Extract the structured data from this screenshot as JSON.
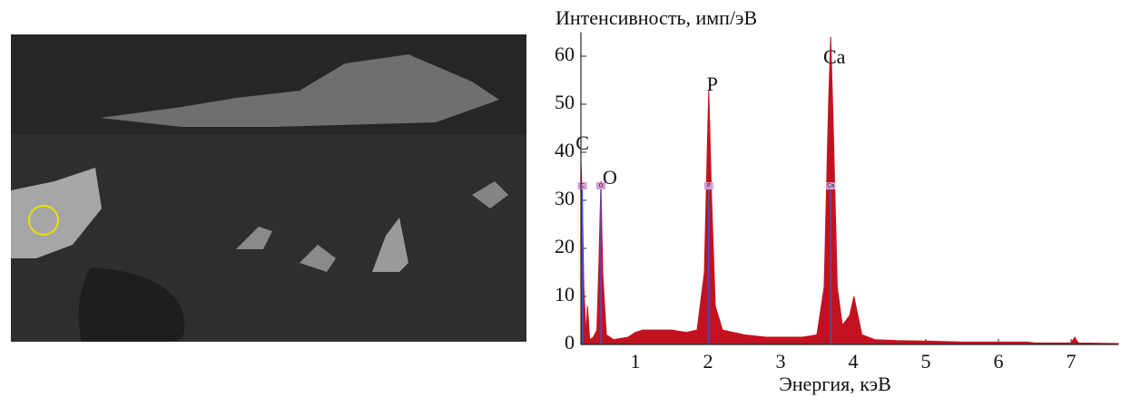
{
  "chart_data": {
    "type": "area",
    "ylabel": "Интенсивность, имп/эВ",
    "xlabel": "Энергия, кэВ",
    "xlim": [
      0.25,
      7.65
    ],
    "xticks": [
      1,
      2,
      3,
      4,
      5,
      6,
      7
    ],
    "ylim": [
      0,
      65
    ],
    "yticks": [
      0,
      10,
      20,
      30,
      40,
      50,
      60
    ],
    "series": [
      {
        "color": "#c3121f",
        "x": [
          0.25,
          0.27,
          0.29,
          0.32,
          0.34,
          0.37,
          0.42,
          0.47,
          0.5,
          0.525,
          0.55,
          0.6,
          0.7,
          0.9,
          1.0,
          1.1,
          1.3,
          1.5,
          1.7,
          1.85,
          1.95,
          2.01,
          2.05,
          2.1,
          2.2,
          2.5,
          2.8,
          3.0,
          3.3,
          3.5,
          3.6,
          3.66,
          3.69,
          3.72,
          3.78,
          3.85,
          3.95,
          4.01,
          4.05,
          4.12,
          4.3,
          4.6,
          5.0,
          5.5,
          6.0,
          6.4,
          6.5,
          7.0,
          7.05,
          7.1,
          7.65
        ],
        "values": [
          38,
          30,
          12,
          2,
          8,
          1,
          1.5,
          3,
          18,
          34,
          15,
          2,
          1,
          1.5,
          2.5,
          3,
          3,
          3,
          2.5,
          3,
          15,
          53,
          30,
          8,
          3,
          2,
          1.5,
          1.5,
          1.5,
          2,
          12,
          50,
          64,
          48,
          12,
          4,
          6,
          10,
          7,
          2,
          1,
          0.8,
          0.7,
          0.5,
          0.5,
          0.5,
          0.3,
          0.3,
          1.5,
          0.3,
          0.2
        ]
      }
    ],
    "peaks": [
      {
        "label": "C",
        "energy": 0.27
      },
      {
        "label": "O",
        "energy": 0.525
      },
      {
        "label": "P",
        "energy": 2.01
      },
      {
        "label": "Ca",
        "energy": 3.69
      }
    ]
  }
}
